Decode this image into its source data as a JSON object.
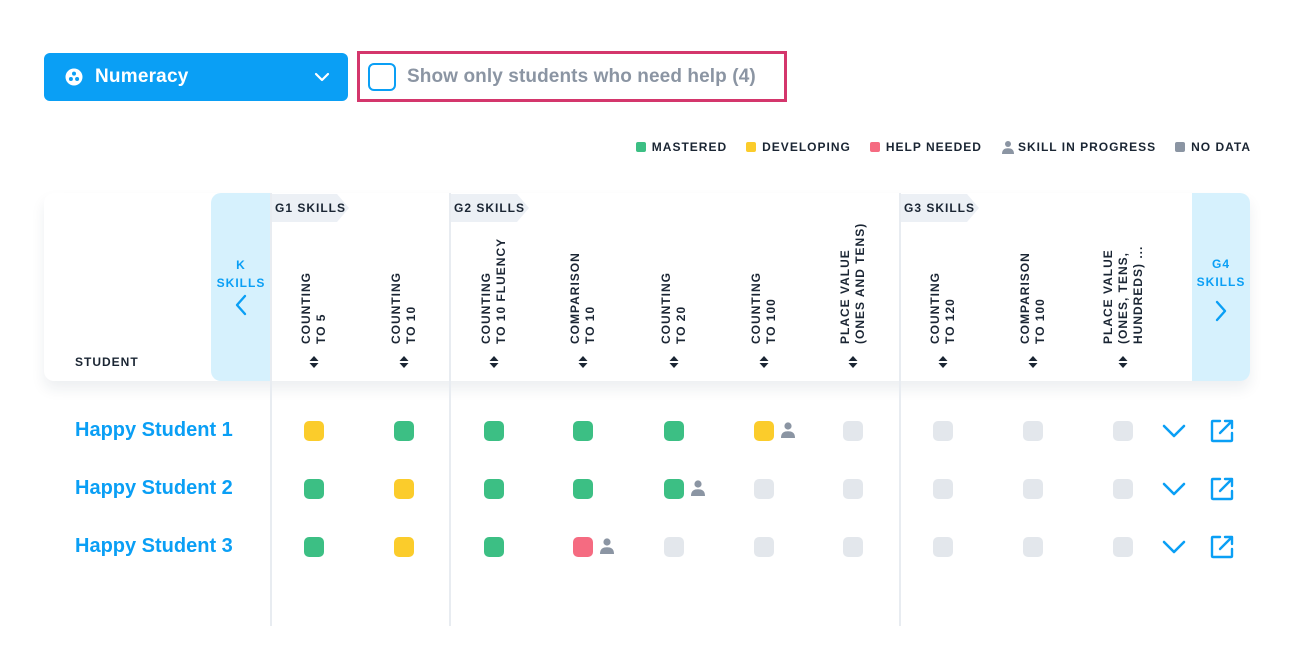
{
  "subject": {
    "label": "Numeracy",
    "icon": "dots-circle-icon",
    "chevron": "chevron-down-icon"
  },
  "filter": {
    "label": "Show only students who need help (4)",
    "checked": false
  },
  "legend": [
    {
      "label": "MASTERED",
      "color": "#3cbf84",
      "icon": ""
    },
    {
      "label": "DEVELOPING",
      "color": "#fbcc2b",
      "icon": ""
    },
    {
      "label": "HELP NEEDED",
      "color": "#f56b81",
      "icon": ""
    },
    {
      "label": "SKILL IN PROGRESS",
      "color": "#8b95a3",
      "icon": "person-icon"
    },
    {
      "label": "NO DATA",
      "color": "#8b95a3",
      "icon": ""
    }
  ],
  "table": {
    "student_header": "STUDENT"
  },
  "nav": {
    "prev": {
      "line1": "K",
      "line2": "SKILLS"
    },
    "next": {
      "line1": "G4",
      "line2": "SKILLS"
    }
  },
  "groups": [
    {
      "label": "G1 SKILLS"
    },
    {
      "label": "G2 SKILLS"
    },
    {
      "label": "G3 SKILLS"
    }
  ],
  "skills": [
    {
      "line1": "COUNTING",
      "line2": "TO 5",
      "line3": ""
    },
    {
      "line1": "COUNTING",
      "line2": "TO 10",
      "line3": ""
    },
    {
      "line1": "COUNTING",
      "line2": "TO 10 FLUENCY",
      "line3": ""
    },
    {
      "line1": "COMPARISON",
      "line2": "TO 10",
      "line3": ""
    },
    {
      "line1": "COUNTING",
      "line2": "TO 20",
      "line3": ""
    },
    {
      "line1": "COUNTING",
      "line2": "TO 100",
      "line3": ""
    },
    {
      "line1": "PLACE VALUE",
      "line2": "(ONES AND TENS)",
      "line3": ""
    },
    {
      "line1": "COUNTING",
      "line2": "TO 120",
      "line3": ""
    },
    {
      "line1": "COMPARISON",
      "line2": "TO 100",
      "line3": ""
    },
    {
      "line1": "PLACE VALUE",
      "line2": "(ONES, TENS,",
      "line3": "HUNDREDS) ..."
    }
  ],
  "status_colors": {
    "mastered": "#3cbf84",
    "developing": "#fbcc2b",
    "help": "#f56b81",
    "nodata": "#e3e7ec"
  },
  "students": [
    {
      "name": "Happy Student 1",
      "cells": [
        "developing",
        "mastered",
        "mastered",
        "mastered",
        "mastered",
        "developing",
        "nodata",
        "nodata",
        "nodata",
        "nodata"
      ],
      "in_progress": [
        false,
        false,
        false,
        false,
        false,
        true,
        false,
        false,
        false,
        false
      ]
    },
    {
      "name": "Happy Student 2",
      "cells": [
        "mastered",
        "developing",
        "mastered",
        "mastered",
        "mastered",
        "nodata",
        "nodata",
        "nodata",
        "nodata",
        "nodata"
      ],
      "in_progress": [
        false,
        false,
        false,
        false,
        true,
        false,
        false,
        false,
        false,
        false
      ]
    },
    {
      "name": "Happy Student 3",
      "cells": [
        "mastered",
        "developing",
        "mastered",
        "help",
        "nodata",
        "nodata",
        "nodata",
        "nodata",
        "nodata",
        "nodata"
      ],
      "in_progress": [
        false,
        false,
        false,
        true,
        false,
        false,
        false,
        false,
        false,
        false
      ]
    }
  ]
}
